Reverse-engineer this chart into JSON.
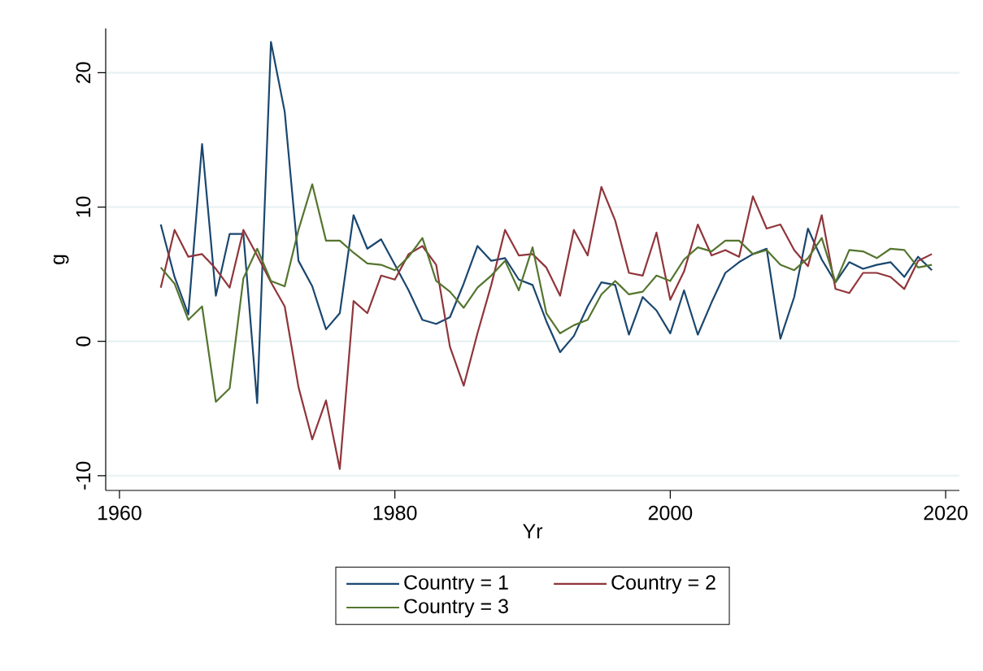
{
  "chart_data": {
    "type": "line",
    "xlabel": "Yr",
    "ylabel": "g",
    "x": [
      1963,
      1964,
      1965,
      1966,
      1967,
      1968,
      1969,
      1970,
      1971,
      1972,
      1973,
      1974,
      1975,
      1976,
      1977,
      1978,
      1979,
      1980,
      1981,
      1982,
      1983,
      1984,
      1985,
      1986,
      1987,
      1988,
      1989,
      1990,
      1991,
      1992,
      1993,
      1994,
      1995,
      1996,
      1997,
      1998,
      1999,
      2000,
      2001,
      2002,
      2003,
      2004,
      2005,
      2006,
      2007,
      2008,
      2009,
      2010,
      2011,
      2012,
      2013,
      2014,
      2015,
      2016,
      2017,
      2018,
      2019
    ],
    "series": [
      {
        "name": "Country = 1",
        "color": "#1a476f",
        "values": [
          8.7,
          4.8,
          2.0,
          14.7,
          3.4,
          8.0,
          8.0,
          -4.6,
          22.3,
          17.1,
          6.0,
          4.1,
          0.9,
          2.1,
          9.4,
          6.9,
          7.6,
          5.7,
          3.8,
          1.6,
          1.3,
          1.8,
          4.3,
          7.1,
          6.0,
          6.2,
          4.6,
          4.2,
          1.5,
          -0.8,
          0.4,
          2.6,
          4.4,
          4.2,
          0.5,
          3.3,
          2.3,
          0.6,
          3.8,
          0.5,
          2.9,
          5.1,
          5.9,
          6.5,
          6.9,
          0.2,
          3.3,
          8.4,
          6.1,
          4.4,
          5.9,
          5.4,
          5.7,
          5.9,
          4.8,
          6.3,
          5.3
        ]
      },
      {
        "name": "Country = 2",
        "color": "#90353b",
        "values": [
          4.0,
          8.3,
          6.3,
          6.5,
          5.4,
          4.0,
          8.3,
          6.4,
          4.4,
          2.6,
          -3.4,
          -7.3,
          -4.4,
          -9.5,
          3.0,
          2.1,
          4.9,
          4.6,
          6.5,
          7.1,
          5.7,
          -0.4,
          -3.3,
          0.6,
          4.2,
          8.3,
          6.4,
          6.5,
          5.5,
          3.4,
          8.3,
          6.4,
          11.5,
          9.0,
          5.1,
          4.9,
          8.1,
          3.1,
          5.2,
          8.7,
          6.4,
          6.8,
          6.3,
          10.8,
          8.4,
          8.7,
          6.8,
          5.6,
          9.4,
          3.9,
          3.6,
          5.1,
          5.1,
          4.8,
          3.9,
          6.0,
          6.5
        ]
      },
      {
        "name": "Country = 3",
        "color": "#55752f",
        "values": [
          5.5,
          4.3,
          1.6,
          2.6,
          -4.5,
          -3.5,
          4.7,
          6.9,
          4.5,
          4.1,
          8.3,
          11.7,
          7.5,
          7.5,
          6.6,
          5.8,
          5.7,
          5.3,
          6.3,
          7.7,
          4.5,
          3.7,
          2.5,
          4.0,
          4.9,
          6.0,
          3.8,
          7.0,
          2.1,
          0.6,
          1.2,
          1.6,
          3.5,
          4.5,
          3.5,
          3.7,
          4.9,
          4.5,
          6.1,
          7.0,
          6.7,
          7.5,
          7.5,
          6.5,
          6.8,
          5.7,
          5.3,
          6.2,
          7.7,
          4.4,
          6.8,
          6.7,
          6.2,
          6.9,
          6.8,
          5.5,
          5.7
        ]
      }
    ],
    "xlim": [
      1959,
      2021
    ],
    "ylim": [
      -11.1,
      23.3
    ],
    "xticks": [
      1960,
      1980,
      2000,
      2020
    ],
    "yticks": [
      -10,
      0,
      10,
      20
    ],
    "grid": "y",
    "legend": "bottom"
  }
}
